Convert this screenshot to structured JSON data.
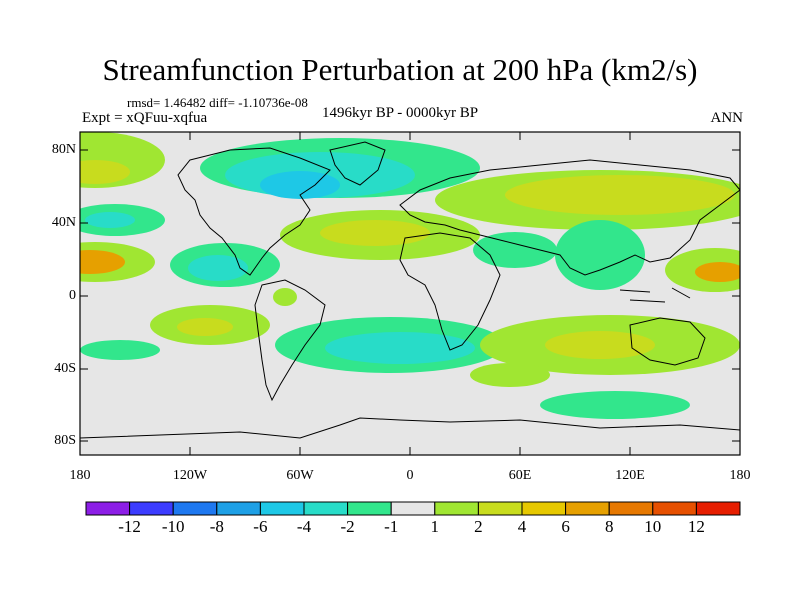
{
  "title": "Streamfunction Perturbation at 200 hPa (km2/s)",
  "stats": "rmsd= 1.46482 diff= -1.10736e-08",
  "experiment": "Expt = xQFuu-xqfua",
  "period": "1496kyr BP - 0000kyr BP",
  "season": "ANN",
  "lat_labels": [
    "80N",
    "40N",
    "0",
    "40S",
    "80S"
  ],
  "lon_labels": [
    "180",
    "120W",
    "60W",
    "0",
    "60E",
    "120E",
    "180"
  ],
  "colorbar": {
    "labels": [
      "-12",
      "-10",
      "-8",
      "-6",
      "-4",
      "-2",
      "-1",
      "1",
      "2",
      "4",
      "6",
      "8",
      "10",
      "12"
    ],
    "colors": [
      "#8c1ee6",
      "#3c3cff",
      "#1e78f0",
      "#1ea0e6",
      "#1ec8e6",
      "#28dcc8",
      "#32e68c",
      "#e6e6e6",
      "#a0e632",
      "#c8dc1e",
      "#e6c800",
      "#e6a000",
      "#e67800",
      "#e65000",
      "#e61e00"
    ]
  },
  "chart_data": {
    "type": "heatmap",
    "variable": "Streamfunction Perturbation at 200 hPa",
    "units": "km2/s",
    "levels": [
      -12,
      -10,
      -8,
      -6,
      -4,
      -2,
      -1,
      1,
      2,
      4,
      6,
      8,
      10,
      12
    ],
    "lon_range": [
      -180,
      180
    ],
    "lat_range": [
      -90,
      90
    ]
  }
}
